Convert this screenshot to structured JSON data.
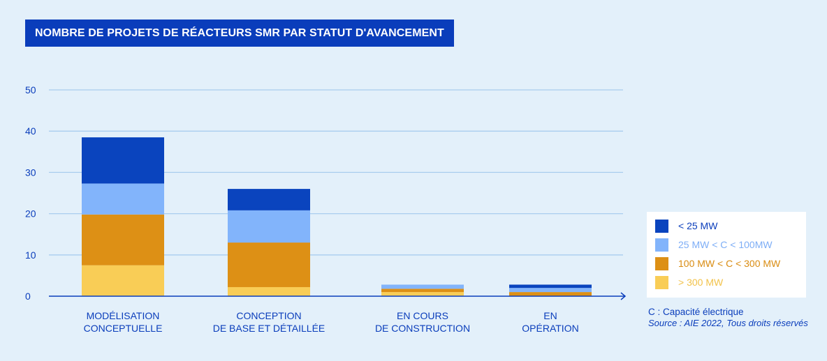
{
  "title": "NOMBRE DE PROJETS DE RÉACTEURS SMR PAR STATUT D'AVANCEMENT",
  "footnote": "C : Capacité électrique",
  "source": "Source : AIE 2022, Tous droits réservés",
  "colors": {
    "axis": "#0a3dbb",
    "grid": "#a9cdee",
    "text": "#0a3dbb",
    "background": "#e3f0fa"
  },
  "chart_data": {
    "type": "bar",
    "stacked": true,
    "title": "NOMBRE DE PROJETS DE RÉACTEURS SMR PAR STATUT D'AVANCEMENT",
    "categories": [
      [
        "MODÉLISATION",
        "CONCEPTUELLE"
      ],
      [
        "CONCEPTION",
        "DE BASE ET DÉTAILLÉE"
      ],
      [
        "EN COURS",
        "DE CONSTRUCTION"
      ],
      [
        "EN",
        "OPÉRATION"
      ]
    ],
    "ylim": [
      0,
      50
    ],
    "yticks": [
      0,
      10,
      20,
      30,
      40,
      50
    ],
    "grid": true,
    "legend_position": "right",
    "series": [
      {
        "name": "> 300 MW",
        "color": "#f9cd56",
        "text_color": "#f2c24a",
        "values": [
          7.5,
          2.2,
          1,
          0
        ]
      },
      {
        "name": "100 MW < C < 300 MW",
        "color": "#dd9015",
        "text_color": "#d98c12",
        "values": [
          12.3,
          10.8,
          0.8,
          1
        ]
      },
      {
        "name": "25 MW < C < 100MW",
        "color": "#82b4fb",
        "text_color": "#7eaef6",
        "values": [
          7.5,
          7.8,
          1,
          1
        ]
      },
      {
        "name": "< 25 MW",
        "color": "#0a44be",
        "text_color": "#0a3dbb",
        "values": [
          11.2,
          5.2,
          0,
          0.8
        ]
      }
    ]
  }
}
